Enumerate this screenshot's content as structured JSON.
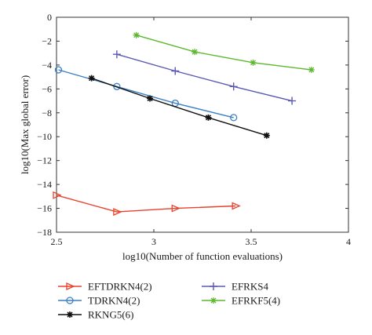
{
  "chart_data": {
    "type": "line",
    "title": "",
    "xlabel": "log10(Number of function evaluations)",
    "ylabel": "log10(Max global error)",
    "xlim": [
      2.5,
      4
    ],
    "ylim": [
      -18,
      0
    ],
    "xticks": [
      2.5,
      3,
      3.5,
      4
    ],
    "yticks": [
      0,
      -2,
      -4,
      -6,
      -8,
      -10,
      -12,
      -14,
      -16,
      -18
    ],
    "xtick_labels": [
      "2.5",
      "3",
      "3.5",
      "4"
    ],
    "ytick_labels": [
      "0",
      "−2",
      "−4",
      "−6",
      "−8",
      "−10",
      "−12",
      "−14",
      "−16",
      "−18"
    ],
    "grid": false,
    "legend_position": "below",
    "series": [
      {
        "name": "EFTDRKN4(2)",
        "color": "#e8432e",
        "marker": "triangle-right",
        "x": [
          2.5,
          2.81,
          3.11,
          3.42
        ],
        "y": [
          -14.9,
          -16.3,
          -16.0,
          -15.8
        ]
      },
      {
        "name": "TDRKN4(2)",
        "color": "#3b7fc4",
        "marker": "circle",
        "x": [
          2.51,
          2.81,
          3.11,
          3.41
        ],
        "y": [
          -4.4,
          -5.8,
          -7.2,
          -8.4
        ]
      },
      {
        "name": "RKNG5(6)",
        "color": "#111111",
        "marker": "asterisk",
        "x": [
          2.68,
          2.98,
          3.28,
          3.58
        ],
        "y": [
          -5.1,
          -6.8,
          -8.4,
          -9.9
        ]
      },
      {
        "name": "EFRKS4",
        "color": "#5a5ab5",
        "marker": "plus",
        "x": [
          2.81,
          3.11,
          3.41,
          3.71
        ],
        "y": [
          -3.1,
          -4.5,
          -5.8,
          -7.0
        ]
      },
      {
        "name": "EFRKF5(4)",
        "color": "#5cb82e",
        "marker": "star",
        "x": [
          2.91,
          3.21,
          3.51,
          3.81
        ],
        "y": [
          -1.5,
          -2.9,
          -3.8,
          -4.4
        ]
      }
    ]
  }
}
